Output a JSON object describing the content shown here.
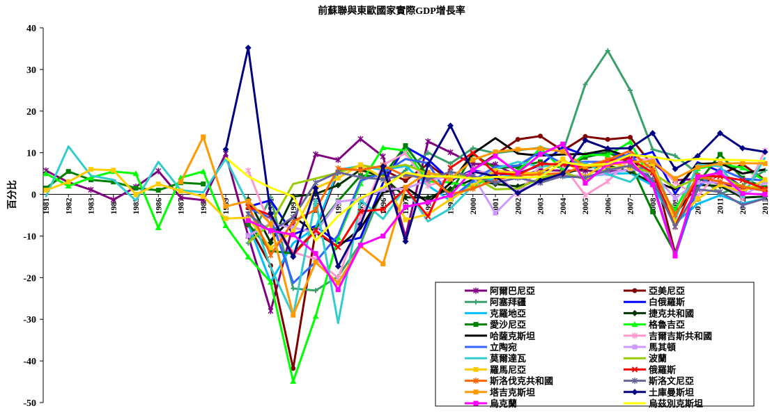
{
  "chart_data": {
    "type": "line",
    "title": "前蘇聯與東歐國家實際GDP增長率",
    "xlabel": "",
    "ylabel": "百分比",
    "ylim": [
      -50,
      40
    ],
    "yticks": [
      40,
      30,
      20,
      10,
      0,
      -10,
      -20,
      -30,
      -40,
      -50
    ],
    "grid": false,
    "legend_position": "bottom-right",
    "categories": [
      "1981",
      "1982",
      "1983",
      "1984",
      "1985",
      "1986",
      "1987",
      "1988",
      "1989",
      "1990",
      "1991",
      "1992",
      "1993",
      "1994",
      "1995",
      "1996",
      "1997",
      "1998",
      "1999",
      "2000",
      "2001",
      "2002",
      "2003",
      "2004",
      "2005",
      "2006",
      "2007",
      "2008",
      "2009",
      "2010",
      "2011",
      "2012",
      "2013"
    ],
    "series": [
      {
        "name": "阿爾巴尼亞",
        "color": "#800080",
        "marker": "star",
        "values": [
          5.7,
          2.9,
          1.1,
          -1.3,
          1.8,
          5.6,
          -0.8,
          -1.4,
          9.8,
          -10,
          -28,
          -7.2,
          9.6,
          8.3,
          13.3,
          9.1,
          -10.2,
          12.7,
          10.1,
          7.3,
          7.2,
          4.3,
          5.8,
          5.7,
          5.7,
          5.4,
          5.9,
          7.5,
          3.4,
          3.7,
          2.5,
          1.6,
          1.1
        ]
      },
      {
        "name": "亞美尼亞",
        "color": "#800000",
        "marker": "circle",
        "values": [
          null,
          null,
          null,
          null,
          null,
          null,
          null,
          null,
          null,
          -7.4,
          -17.1,
          -41.8,
          -8.8,
          5.4,
          6.9,
          5.9,
          3.3,
          7.3,
          3.3,
          5.9,
          9.6,
          13.2,
          14,
          10.5,
          13.9,
          13.2,
          13.7,
          6.9,
          -14.1,
          2.2,
          4.7,
          7.2,
          3.5
        ]
      },
      {
        "name": "阿塞拜疆",
        "color": "#3CA06A",
        "marker": "plus",
        "values": [
          null,
          null,
          null,
          null,
          null,
          null,
          null,
          null,
          null,
          -11.7,
          -0.7,
          -22.6,
          -23.1,
          -19.7,
          -11.8,
          1.3,
          5.8,
          10,
          7.4,
          11.1,
          9.9,
          10.6,
          11.2,
          10.2,
          26.4,
          34.5,
          25,
          10.8,
          9.3,
          5,
          0.1,
          2.2,
          5.8
        ]
      },
      {
        "name": "白俄羅斯",
        "color": "#0000FF",
        "marker": "none",
        "values": [
          null,
          null,
          null,
          null,
          null,
          null,
          null,
          null,
          null,
          -3,
          -1.4,
          -9.6,
          -7.6,
          -11.7,
          -10.4,
          2.8,
          11.4,
          8.4,
          3.4,
          5.8,
          4.7,
          5,
          7,
          11.4,
          9.4,
          10,
          8.6,
          10.2,
          0.2,
          7.7,
          5.5,
          1.7,
          0.9
        ]
      },
      {
        "name": "克羅地亞",
        "color": "#00BFFF",
        "marker": "none",
        "values": [
          null,
          null,
          null,
          null,
          null,
          null,
          null,
          null,
          null,
          -7.1,
          -21.1,
          -11.7,
          -8,
          5.9,
          6.8,
          5.9,
          6.8,
          2.1,
          -1.5,
          3,
          3.7,
          4.9,
          5.4,
          4.1,
          4.3,
          4.9,
          5.1,
          2.1,
          -6.9,
          -2.3,
          -0.2,
          -2.2,
          -1
        ]
      },
      {
        "name": "捷克共和國",
        "color": "#003300",
        "marker": "diamond",
        "values": [
          null,
          null,
          null,
          null,
          null,
          null,
          null,
          null,
          null,
          -1.2,
          -11.6,
          -0.5,
          0.1,
          2.2,
          5.9,
          4.2,
          -0.7,
          -0.8,
          1.3,
          3.6,
          2.5,
          1.9,
          3.6,
          4.9,
          6.4,
          6.9,
          5.5,
          2.7,
          -4.8,
          2.3,
          2,
          -0.8,
          -0.5
        ]
      },
      {
        "name": "愛沙尼亞",
        "color": "#008000",
        "marker": "square",
        "values": [
          1.5,
          5.5,
          3.5,
          3,
          1.5,
          1,
          2.8,
          2.5,
          null,
          -7.1,
          -13.6,
          -14.2,
          -8.5,
          -1.6,
          4.5,
          4.4,
          11.7,
          4.4,
          0.3,
          9.7,
          6.3,
          6.6,
          7.8,
          6.3,
          8.9,
          10.1,
          7.5,
          -4.2,
          -14.1,
          2.6,
          9.6,
          3.9,
          1.6
        ]
      },
      {
        "name": "格魯吉亞",
        "color": "#00FF00",
        "marker": "triangle",
        "values": [
          5,
          2,
          4,
          5.5,
          5,
          -8,
          4,
          5.5,
          -7.5,
          -15,
          -21.1,
          -44.9,
          -29.3,
          -10.4,
          2.6,
          11.2,
          10.5,
          3.1,
          2.9,
          1.8,
          4.8,
          5.5,
          11.1,
          5.9,
          9.6,
          9.4,
          12.6,
          2.6,
          -3.7,
          6.2,
          7.2,
          6.4,
          3.3
        ]
      },
      {
        "name": "哈薩克斯坦",
        "color": "#000000",
        "marker": "none",
        "values": [
          null,
          null,
          null,
          null,
          null,
          null,
          null,
          null,
          null,
          null,
          -11,
          -5.3,
          -9.2,
          -12.6,
          -8.2,
          0.5,
          1.7,
          -1.9,
          2.7,
          9.8,
          13.5,
          9.8,
          9.3,
          9.6,
          9.7,
          10.7,
          8.9,
          3.3,
          1.2,
          7.3,
          7.5,
          5,
          6
        ]
      },
      {
        "name": "吉爾吉斯共和國",
        "color": "#FF99CC",
        "marker": "star",
        "values": [
          null,
          null,
          null,
          null,
          null,
          null,
          null,
          null,
          null,
          5.7,
          -7.9,
          -13.9,
          -15.5,
          -20.1,
          -5.4,
          7.1,
          9.9,
          2.1,
          3.7,
          5.4,
          5.3,
          0,
          7,
          7,
          -0.2,
          3.1,
          8.5,
          8.4,
          2.9,
          -0.5,
          6,
          -0.9,
          10.5
        ]
      },
      {
        "name": "立陶宛",
        "color": "#3366FF",
        "marker": "none",
        "values": [
          null,
          null,
          null,
          null,
          null,
          null,
          null,
          null,
          null,
          -3.3,
          -5.7,
          -21.3,
          -16.2,
          -9.8,
          3.3,
          5.1,
          8.5,
          7.5,
          -1.1,
          3.3,
          6.7,
          6.9,
          10.2,
          7.4,
          7.8,
          7.8,
          9.8,
          2.9,
          -14.8,
          1.6,
          6.1,
          3.8,
          3.3
        ]
      },
      {
        "name": "馬其頓",
        "color": "#CC99FF",
        "marker": "square",
        "values": [
          null,
          null,
          null,
          null,
          null,
          null,
          null,
          null,
          null,
          -9.9,
          -7,
          -8,
          -9.1,
          -1.8,
          -1.1,
          1.2,
          1.4,
          3.4,
          4.3,
          4.5,
          -4.5,
          0.9,
          2.8,
          4.6,
          4.4,
          5,
          6.1,
          5,
          -0.9,
          2.9,
          2.8,
          -0.4,
          2.9
        ]
      },
      {
        "name": "莫爾達瓦",
        "color": "#33CCCC",
        "marker": "none",
        "values": [
          -0.5,
          11.5,
          4.5,
          3.5,
          -1.5,
          7.8,
          1,
          0.5,
          8.5,
          -2.4,
          -17.5,
          -29.1,
          -1.2,
          -30.9,
          -1.4,
          -5.9,
          1.6,
          -6.5,
          -3.4,
          2.1,
          6.1,
          7.8,
          6.6,
          7.4,
          7.5,
          4.8,
          3,
          7.8,
          -6,
          7.1,
          6.8,
          -0.7,
          8.9
        ]
      },
      {
        "name": "波蘭",
        "color": "#99CC00",
        "marker": "none",
        "values": [
          null,
          null,
          null,
          null,
          null,
          null,
          null,
          null,
          null,
          -11.6,
          -7,
          2.5,
          3.8,
          5.2,
          7,
          6.2,
          7.1,
          5,
          4.5,
          4.3,
          1.2,
          1.4,
          3.9,
          5.3,
          3.6,
          6.2,
          6.8,
          5.1,
          1.6,
          3.9,
          4.5,
          1.9,
          1.6
        ]
      },
      {
        "name": "羅馬尼亞",
        "color": "#FFCC00",
        "marker": "square",
        "values": [
          1,
          3,
          6,
          5.8,
          0,
          2.5,
          0.8,
          -0.5,
          -5.8,
          -5.6,
          -12.9,
          -8.8,
          1.5,
          3.9,
          7.1,
          3.9,
          -6.1,
          -4.8,
          -1.2,
          2.1,
          5.7,
          5.1,
          5.2,
          8.5,
          4.2,
          7.9,
          6.3,
          7.3,
          -6.6,
          -1.1,
          2.3,
          0.6,
          3.5
        ]
      },
      {
        "name": "俄羅斯",
        "color": "#FF0000",
        "marker": "x",
        "values": [
          null,
          null,
          null,
          null,
          null,
          null,
          null,
          null,
          null,
          -3,
          -5,
          -14.5,
          -8.7,
          -12.7,
          -4.1,
          -3.6,
          1.4,
          -5.3,
          6.4,
          10,
          5.1,
          4.7,
          7.3,
          7.2,
          6.4,
          8.2,
          8.5,
          5.2,
          -7.8,
          4.5,
          4.3,
          3.4,
          1.3
        ]
      },
      {
        "name": "斯洛伐克共和國",
        "color": "#FF6600",
        "marker": "star",
        "values": [
          null,
          null,
          null,
          null,
          null,
          null,
          null,
          null,
          null,
          -2.7,
          -14.6,
          -6.5,
          -3.7,
          6.2,
          5.8,
          6.9,
          4.4,
          4.4,
          0,
          1.4,
          3.5,
          4.6,
          4.8,
          5.1,
          6.7,
          8.3,
          10.5,
          5.8,
          -4.9,
          4.4,
          3,
          1.8,
          0.9
        ]
      },
      {
        "name": "斯洛文尼亞",
        "color": "#666699",
        "marker": "star",
        "values": [
          null,
          null,
          null,
          null,
          null,
          null,
          null,
          null,
          null,
          -4.7,
          -8.9,
          -5.5,
          2.8,
          5.3,
          4.1,
          3.6,
          4.8,
          3.6,
          5.4,
          4.4,
          2.8,
          4,
          2.8,
          4.4,
          4,
          5.8,
          6.9,
          3.6,
          -7.8,
          1.2,
          0.6,
          -2.6,
          -1
        ]
      },
      {
        "name": "塔吉克斯坦",
        "color": "#FF9900",
        "marker": "square",
        "values": [
          null,
          null,
          null,
          null,
          null,
          null,
          3,
          13.8,
          -2.9,
          -1.6,
          -7.1,
          -29,
          -16.3,
          -21.3,
          -12.4,
          -16.7,
          1.7,
          5.3,
          3.7,
          8.3,
          10.2,
          10.8,
          11,
          10.3,
          6.7,
          7,
          7.8,
          7.9,
          3.8,
          6.5,
          7.4,
          7.5,
          7.4
        ]
      },
      {
        "name": "土庫曼斯坦",
        "color": "#000080",
        "marker": "diamond",
        "values": [
          null,
          null,
          null,
          null,
          null,
          null,
          null,
          null,
          10.8,
          35.2,
          -4.7,
          -15,
          1.5,
          -17.3,
          -7.2,
          6.7,
          -11.3,
          7.1,
          16.5,
          5.5,
          4.3,
          0.3,
          3.3,
          5,
          13,
          11,
          11.1,
          14.7,
          6.1,
          9.2,
          14.7,
          11.1,
          10.2
        ]
      },
      {
        "name": "烏克蘭",
        "color": "#FF00FF",
        "marker": "square",
        "values": [
          null,
          null,
          null,
          null,
          null,
          null,
          null,
          null,
          null,
          -6.3,
          -8.7,
          -9.7,
          -14.2,
          -22.9,
          -12.2,
          -10,
          -3,
          -1.9,
          -0.2,
          5.9,
          9.2,
          5.2,
          9.6,
          12.1,
          2.7,
          7.3,
          7.9,
          2.3,
          -14.8,
          4.2,
          5.2,
          0.2,
          0
        ]
      },
      {
        "name": "烏茲別克斯坦",
        "color": "#FFFF00",
        "marker": "none",
        "values": [
          null,
          null,
          null,
          null,
          null,
          null,
          null,
          null,
          8.8,
          4.3,
          1.6,
          -0.5,
          -11.1,
          -5.2,
          -0.9,
          1.7,
          5.2,
          4.3,
          4.3,
          3.8,
          4.2,
          4,
          4.2,
          7.7,
          7,
          7.3,
          9.5,
          9,
          8.1,
          8.5,
          8.3,
          8.2,
          8
        ]
      }
    ]
  }
}
